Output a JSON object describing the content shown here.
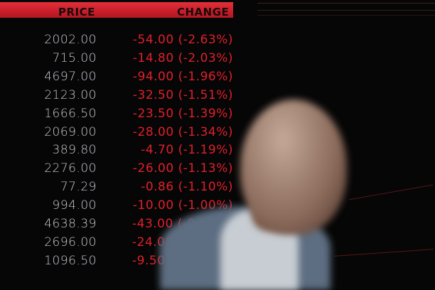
{
  "board": {
    "headers": {
      "price": "PRICE",
      "change": "CHANGE"
    },
    "rows": [
      {
        "price": "2002.00",
        "change": "-54.00 (-2.63%)"
      },
      {
        "price": "715.00",
        "change": "-14.80 (-2.03%)"
      },
      {
        "price": "4697.00",
        "change": "-94.00 (-1.96%)"
      },
      {
        "price": "2123.00",
        "change": "-32.50 (-1.51%)"
      },
      {
        "price": "1666.50",
        "change": "-23.50 (-1.39%)"
      },
      {
        "price": "2069.00",
        "change": "-28.00 (-1.34%)"
      },
      {
        "price": "389.80",
        "change": "-4.70 (-1.19%)"
      },
      {
        "price": "2276.00",
        "change": "-26.00 (-1.13%)"
      },
      {
        "price": "77.29",
        "change": "-0.86 (-1.10%)"
      },
      {
        "price": "994.00",
        "change": "-10.00 (-1.00%)"
      },
      {
        "price": "4638.39",
        "change": "-43.00 (-0.92"
      },
      {
        "price": "2696.00",
        "change": "-24.00 (-0."
      },
      {
        "price": "1096.50",
        "change": "-9.50 ("
      }
    ],
    "colors": {
      "header": "#c81e2a",
      "price_text": "#c9ccd3",
      "change_text": "#e0202a",
      "background": "#060606"
    }
  }
}
